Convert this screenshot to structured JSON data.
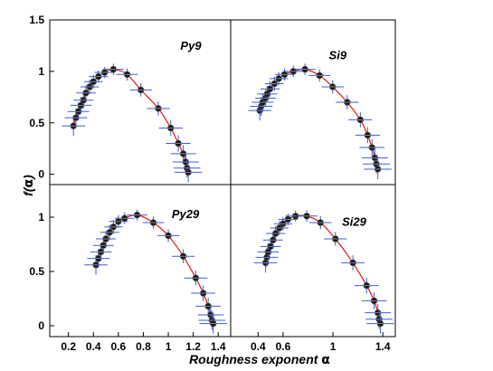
{
  "figure": {
    "ylabel_main": "f(",
    "ylabel_greek": "α",
    "ylabel_close": ")",
    "xlabel_main": "Roughness exponent ",
    "xlabel_greek": "α"
  },
  "chart_data": [
    {
      "type": "scatter",
      "title": "Py9",
      "xlim": [
        0.05,
        1.5
      ],
      "ylim": [
        -0.1,
        1.5
      ],
      "yticks": [
        "1.5",
        "1",
        "0.5",
        "0"
      ],
      "xticks": [],
      "points": [
        [
          0.24,
          0.47
        ],
        [
          0.26,
          0.55
        ],
        [
          0.28,
          0.61
        ],
        [
          0.3,
          0.67
        ],
        [
          0.32,
          0.72
        ],
        [
          0.34,
          0.79
        ],
        [
          0.37,
          0.85
        ],
        [
          0.4,
          0.9
        ],
        [
          0.44,
          0.95
        ],
        [
          0.49,
          0.99
        ],
        [
          0.56,
          1.02
        ],
        [
          0.67,
          0.97
        ],
        [
          0.78,
          0.82
        ],
        [
          0.92,
          0.64
        ],
        [
          1.02,
          0.45
        ],
        [
          1.08,
          0.3
        ],
        [
          1.12,
          0.2
        ],
        [
          1.14,
          0.12
        ],
        [
          1.15,
          0.06
        ],
        [
          1.16,
          0.02
        ]
      ]
    },
    {
      "type": "scatter",
      "title": "Si9",
      "xlim": [
        0.15,
        1.28
      ],
      "ylim": [
        -0.1,
        1.5
      ],
      "yticks": [],
      "xticks": [],
      "points": [
        [
          0.35,
          0.62
        ],
        [
          0.36,
          0.66
        ],
        [
          0.37,
          0.7
        ],
        [
          0.39,
          0.74
        ],
        [
          0.4,
          0.78
        ],
        [
          0.42,
          0.83
        ],
        [
          0.45,
          0.88
        ],
        [
          0.48,
          0.93
        ],
        [
          0.52,
          0.97
        ],
        [
          0.58,
          1.0
        ],
        [
          0.66,
          1.02
        ],
        [
          0.76,
          0.96
        ],
        [
          0.85,
          0.85
        ],
        [
          0.95,
          0.7
        ],
        [
          1.04,
          0.53
        ],
        [
          1.09,
          0.38
        ],
        [
          1.12,
          0.26
        ],
        [
          1.14,
          0.16
        ],
        [
          1.15,
          0.1
        ],
        [
          1.16,
          0.05
        ]
      ]
    },
    {
      "type": "scatter",
      "title": "Py29",
      "xlim": [
        0.05,
        1.5
      ],
      "ylim": [
        -0.1,
        1.3
      ],
      "yticks": [
        "1",
        "0.5",
        "0"
      ],
      "xticks": [
        "0.2",
        "0.4",
        "0.6",
        "0.8",
        "1",
        "1.2",
        "1.4"
      ],
      "points": [
        [
          0.42,
          0.56
        ],
        [
          0.44,
          0.62
        ],
        [
          0.46,
          0.68
        ],
        [
          0.48,
          0.74
        ],
        [
          0.5,
          0.8
        ],
        [
          0.53,
          0.86
        ],
        [
          0.56,
          0.91
        ],
        [
          0.6,
          0.96
        ],
        [
          0.65,
          0.99
        ],
        [
          0.75,
          1.02
        ],
        [
          0.88,
          0.95
        ],
        [
          1.0,
          0.83
        ],
        [
          1.12,
          0.64
        ],
        [
          1.22,
          0.44
        ],
        [
          1.28,
          0.3
        ],
        [
          1.32,
          0.18
        ],
        [
          1.34,
          0.1
        ],
        [
          1.35,
          0.05
        ],
        [
          1.36,
          0.02
        ]
      ]
    },
    {
      "type": "scatter",
      "title": "Si29",
      "xlim": [
        0.18,
        1.5
      ],
      "ylim": [
        -0.1,
        1.3
      ],
      "yticks": [],
      "xticks": [
        "0.4",
        "0.6",
        "1",
        "1.4"
      ],
      "points": [
        [
          0.46,
          0.58
        ],
        [
          0.47,
          0.63
        ],
        [
          0.48,
          0.68
        ],
        [
          0.5,
          0.73
        ],
        [
          0.52,
          0.79
        ],
        [
          0.54,
          0.85
        ],
        [
          0.57,
          0.9
        ],
        [
          0.6,
          0.94
        ],
        [
          0.64,
          0.98
        ],
        [
          0.7,
          1.01
        ],
        [
          0.79,
          1.01
        ],
        [
          0.9,
          0.95
        ],
        [
          1.02,
          0.8
        ],
        [
          1.16,
          0.58
        ],
        [
          1.27,
          0.37
        ],
        [
          1.33,
          0.23
        ],
        [
          1.36,
          0.12
        ],
        [
          1.37,
          0.06
        ],
        [
          1.38,
          0.02
        ]
      ]
    }
  ]
}
